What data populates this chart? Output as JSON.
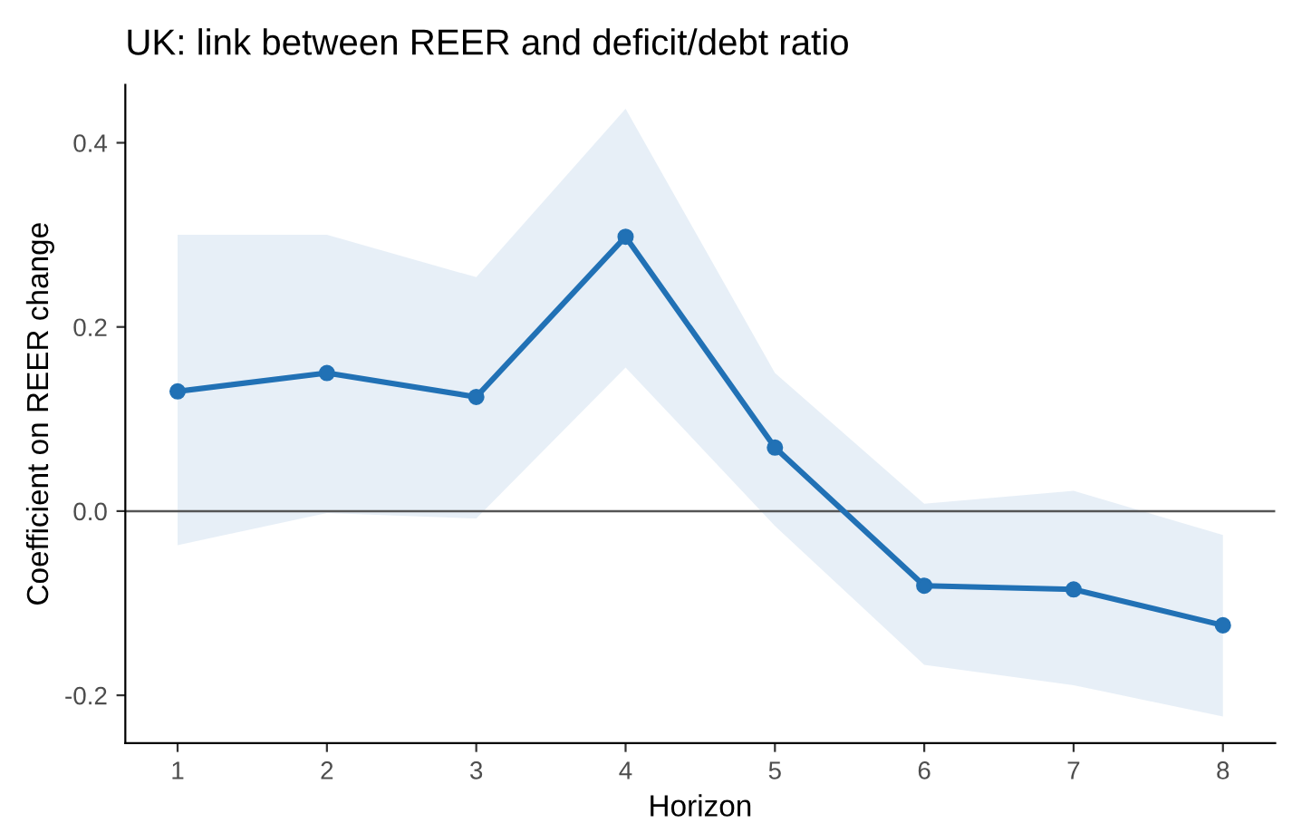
{
  "chart_data": {
    "type": "line",
    "title": "UK: link between REER and deficit/debt ratio",
    "xlabel": "Horizon",
    "ylabel": "Coefficient on REER change",
    "x": [
      1,
      2,
      3,
      4,
      5,
      6,
      7,
      8
    ],
    "series": [
      {
        "color": "#2171b5",
        "values": [
          0.13,
          0.15,
          0.124,
          0.298,
          0.069,
          -0.081,
          -0.085,
          -0.124
        ],
        "lower": [
          -0.037,
          -0.002,
          -0.008,
          0.156,
          -0.016,
          -0.167,
          -0.189,
          -0.223
        ],
        "upper": [
          0.3,
          0.3,
          0.254,
          0.437,
          0.15,
          0.008,
          0.022,
          -0.026
        ]
      }
    ],
    "xlim": [
      0.65,
      8.35
    ],
    "xticks": [
      1,
      2,
      3,
      4,
      5,
      6,
      7,
      8
    ],
    "ylim": [
      -0.252,
      0.463
    ],
    "yticks": [
      {
        "value": -0.2,
        "label": "-0.2"
      },
      {
        "value": 0.0,
        "label": "0.0"
      },
      {
        "value": 0.2,
        "label": "0.2"
      },
      {
        "value": 0.4,
        "label": "0.4"
      }
    ],
    "ref_lines": [
      {
        "axis": "y",
        "value": 0,
        "color": "#555555"
      }
    ],
    "marker": "circle",
    "line_style": "solid",
    "grid": false,
    "legend": false
  }
}
